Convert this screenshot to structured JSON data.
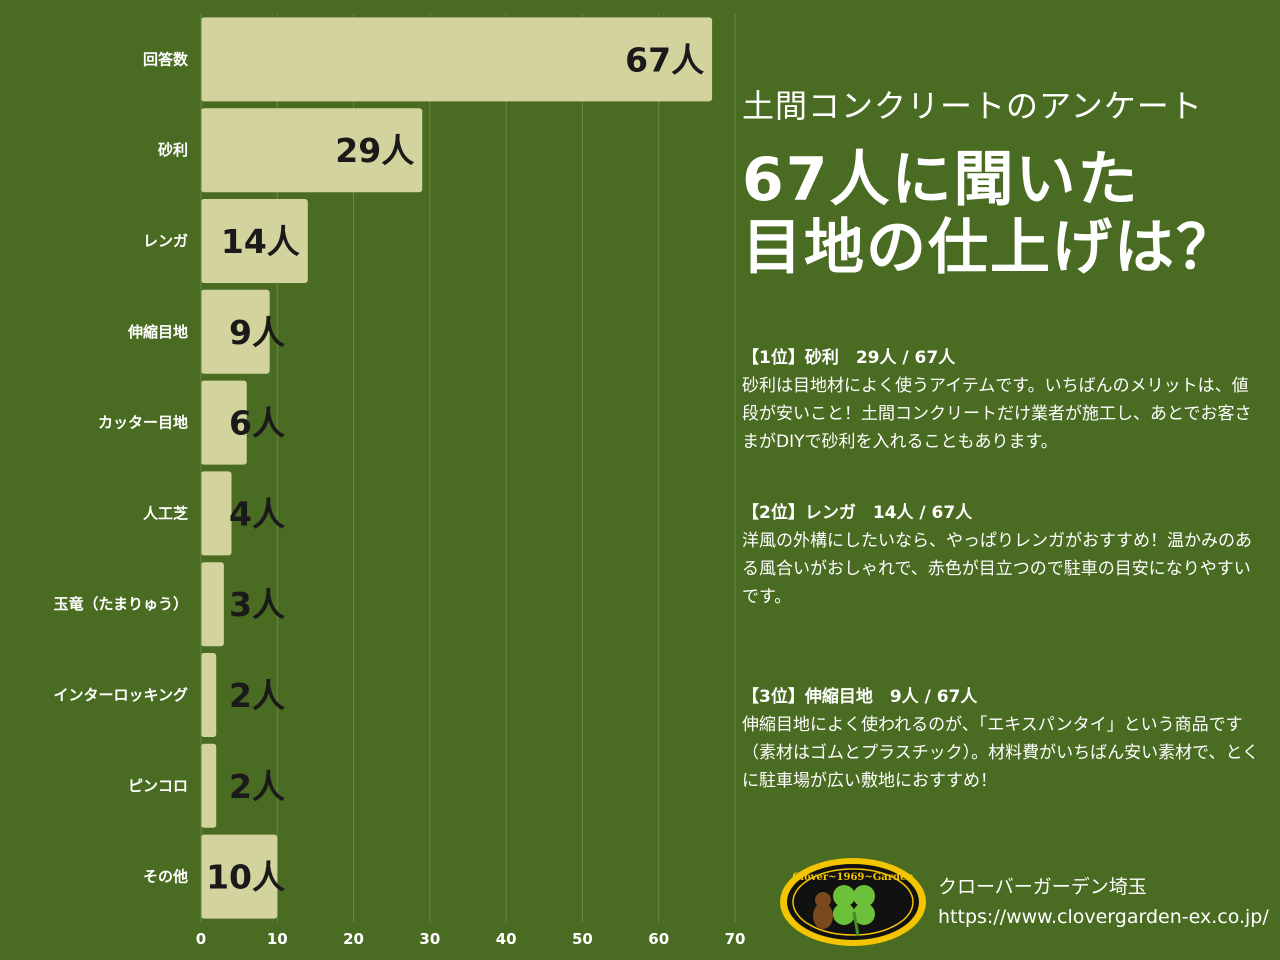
{
  "chart_data": {
    "type": "bar",
    "orientation": "horizontal",
    "categories": [
      "回答数",
      "砂利",
      "レンガ",
      "伸縮目地",
      "カッター目地",
      "人工芝",
      "玉竜（たまりゅう）",
      "インターロッキング",
      "ピンコロ",
      "その他"
    ],
    "values": [
      67,
      29,
      14,
      9,
      6,
      4,
      3,
      2,
      2,
      10
    ],
    "value_labels": [
      "67人",
      "29人",
      "14人",
      "9人",
      "6人",
      "4人",
      "3人",
      "2人",
      "2人",
      "10人"
    ],
    "xlim": [
      0,
      70
    ],
    "xticks": [
      "0",
      "10",
      "20",
      "30",
      "40",
      "50",
      "60",
      "70"
    ],
    "grid": true,
    "bar_color": "#d3d39e"
  },
  "colors": {
    "background": "#4a6b22",
    "bar": "#d3d39e",
    "text": "#ffffff"
  },
  "header": {
    "subtitle": "土間コンクリートのアンケート",
    "title_line1": "67人に聞いた",
    "title_line2": "目地の仕上げは？"
  },
  "ranks": [
    {
      "heading": "【1位】砂利　29人 / 67人",
      "body": "砂利は目地材によく使うアイテムです。いちばんのメリットは、値段が安いこと！土間コンクリートだけ業者が施工し、あとでお客さまがDIYで砂利を入れることもあります。"
    },
    {
      "heading": "【2位】レンガ　14人 / 67人",
      "body": "洋風の外構にしたいなら、やっぱりレンガがおすすめ！温かみのある風合いがおしゃれで、赤色が目立つので駐車の目安になりやすいです。"
    },
    {
      "heading": "【3位】伸縮目地　9人 / 67人",
      "body": "伸縮目地によく使われるのが、「エキスパンタイ」という商品です（素材はゴムとプラスチック）。材料費がいちばん安い素材で、とくに駐車場が広い敷地におすすめ！"
    }
  ],
  "footer": {
    "company": "クローバーガーデン埼玉",
    "url": "https://www.clovergarden-ex.co.jp/",
    "logo_text": "Clover~1969~Garden"
  }
}
